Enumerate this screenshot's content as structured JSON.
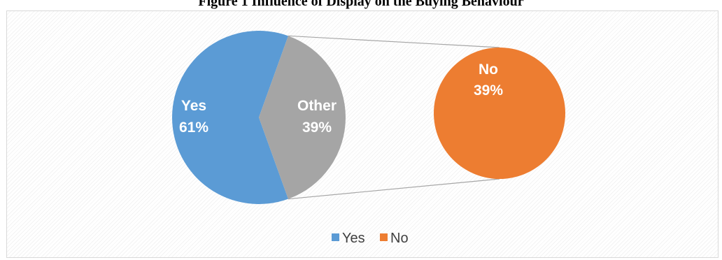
{
  "chart_data": {
    "type": "pie",
    "subtype": "pie-of-pie",
    "title": "Figure 1 Influence of Display on the Buying Behaviour",
    "main_pie": {
      "slices": [
        {
          "name": "Yes",
          "label": "Yes",
          "percent_label": "61%",
          "value": 61,
          "color": "#5b9bd5"
        },
        {
          "name": "Other",
          "label": "Other",
          "percent_label": "39%",
          "value": 39,
          "color": "#a5a5a5"
        }
      ]
    },
    "secondary_pie": {
      "slices": [
        {
          "name": "No",
          "label": "No",
          "percent_label": "39%",
          "value": 39,
          "color": "#ed7d31"
        }
      ]
    },
    "legend": {
      "position": "bottom",
      "entries": [
        {
          "label": "Yes",
          "color": "#5b9bd5"
        },
        {
          "label": "No",
          "color": "#ed7d31"
        }
      ]
    },
    "connector_color": "#a6a6a6"
  }
}
